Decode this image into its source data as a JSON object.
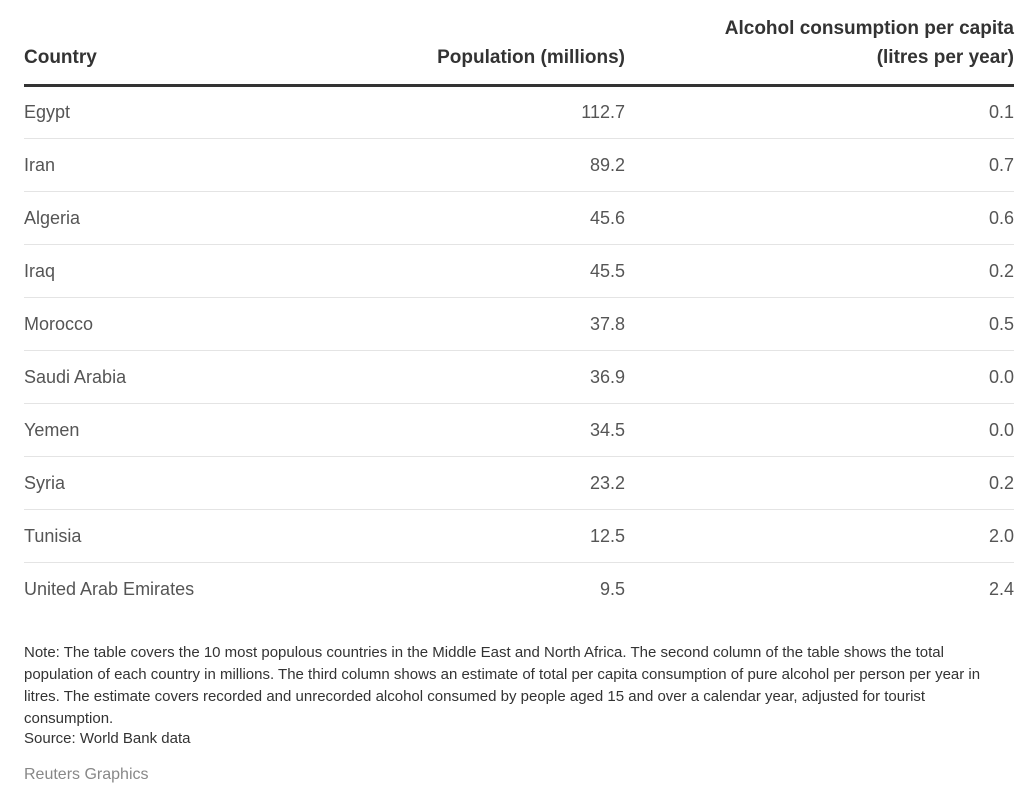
{
  "chart_data": {
    "type": "table",
    "columns": [
      "Country",
      "Population (millions)",
      "Alcohol consumption per capita (litres per year)"
    ],
    "header": {
      "country": "Country",
      "population": "Population (millions)",
      "alcohol_line1": "Alcohol consumption per capita",
      "alcohol_line2": "(litres per year)"
    },
    "rows": [
      {
        "country": "Egypt",
        "population": "112.7",
        "alcohol": "0.1"
      },
      {
        "country": "Iran",
        "population": "89.2",
        "alcohol": "0.7"
      },
      {
        "country": "Algeria",
        "population": "45.6",
        "alcohol": "0.6"
      },
      {
        "country": "Iraq",
        "population": "45.5",
        "alcohol": "0.2"
      },
      {
        "country": "Morocco",
        "population": "37.8",
        "alcohol": "0.5"
      },
      {
        "country": "Saudi Arabia",
        "population": "36.9",
        "alcohol": "0.0"
      },
      {
        "country": "Yemen",
        "population": "34.5",
        "alcohol": "0.0"
      },
      {
        "country": "Syria",
        "population": "23.2",
        "alcohol": "0.2"
      },
      {
        "country": "Tunisia",
        "population": "12.5",
        "alcohol": "2.0"
      },
      {
        "country": "United Arab Emirates",
        "population": "9.5",
        "alcohol": "2.4"
      }
    ]
  },
  "footer": {
    "note": "Note: The table covers the 10 most populous countries in the Middle East and North Africa. The second column of the table shows the total population of each country in millions. The third column shows an estimate of total per capita consumption of pure alcohol per person per year in litres. The estimate covers recorded and unrecorded alcohol consumed by people aged 15 and over a calendar year, adjusted for tourist consumption.",
    "source": "Source: World Bank data",
    "credit": "Reuters Graphics"
  },
  "colors": {
    "text": "#404040",
    "header_rule": "#333333",
    "row_divider": "#e4e4e4",
    "credit": "#888888"
  }
}
